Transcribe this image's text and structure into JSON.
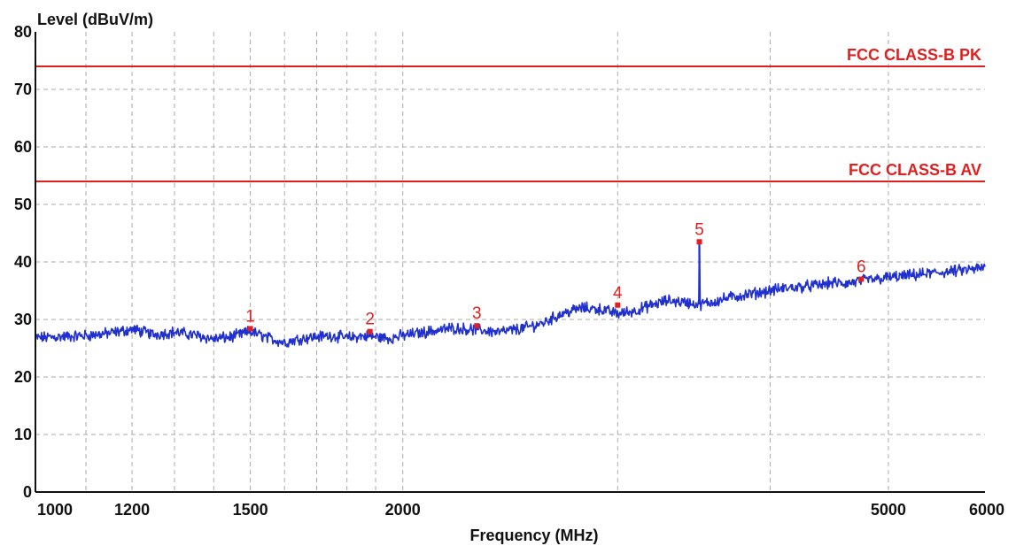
{
  "chart_data": {
    "type": "line",
    "title": "",
    "ylabel": "Level (dBuV/m)",
    "xlabel": "Frequency (MHz)",
    "x_scale": "log",
    "xlim": [
      1000,
      6000
    ],
    "ylim": [
      0,
      80
    ],
    "grid": true,
    "y_ticks": [
      "0",
      "10",
      "20",
      "30",
      "40",
      "50",
      "60",
      "70",
      "80"
    ],
    "x_ticks": [
      {
        "value": 1000,
        "label": "1000"
      },
      {
        "value": 1200,
        "label": "1200"
      },
      {
        "value": 1500,
        "label": "1500"
      },
      {
        "value": 2000,
        "label": "2000"
      },
      {
        "value": 5000,
        "label": "5000"
      },
      {
        "value": 6000,
        "label": "6000"
      }
    ],
    "x_minor_grid": [
      1100,
      1300,
      1400,
      1600,
      1700,
      1800,
      1900,
      3000,
      4000
    ],
    "limit_lines": [
      {
        "name": "FCC CLASS-B PK",
        "value": 74,
        "color": "#e02020"
      },
      {
        "name": "FCC CLASS-B AV",
        "value": 54,
        "color": "#e02020"
      }
    ],
    "series": [
      {
        "color": "#1f2fd0",
        "x": [
          1000,
          1050,
          1100,
          1150,
          1200,
          1250,
          1300,
          1350,
          1400,
          1450,
          1500,
          1550,
          1600,
          1650,
          1700,
          1750,
          1800,
          1850,
          1900,
          1950,
          2000,
          2100,
          2200,
          2300,
          2400,
          2500,
          2600,
          2700,
          2800,
          2900,
          3000,
          3100,
          3200,
          3300,
          3400,
          3500,
          3600,
          3700,
          3800,
          3900,
          4000,
          4100,
          4200,
          4300,
          4400,
          4500,
          4600,
          4700,
          4800,
          4900,
          5000,
          5200,
          5400,
          5600,
          5800,
          6000
        ],
        "y": [
          26.8,
          27.0,
          27.2,
          27.6,
          28.3,
          27.4,
          27.8,
          27.3,
          26.6,
          27.0,
          27.9,
          26.8,
          26.0,
          26.7,
          27.0,
          27.2,
          26.8,
          27.1,
          27.0,
          26.7,
          27.2,
          27.9,
          28.5,
          28.2,
          27.8,
          28.4,
          29.3,
          31.0,
          32.0,
          31.8,
          31.0,
          31.5,
          32.5,
          33.3,
          33.0,
          32.6,
          33.1,
          33.8,
          34.2,
          34.6,
          35.0,
          35.4,
          35.6,
          35.8,
          36.0,
          36.4,
          36.2,
          36.5,
          36.9,
          37.0,
          37.3,
          37.6,
          38.0,
          38.3,
          38.6,
          39.0
        ],
        "spike": {
          "x": 3500,
          "y": 43.5
        }
      }
    ],
    "markers": [
      {
        "label": "1",
        "x": 1500,
        "y": 28.4
      },
      {
        "label": "2",
        "x": 1880,
        "y": 27.9
      },
      {
        "label": "3",
        "x": 2300,
        "y": 28.9
      },
      {
        "label": "4",
        "x": 3000,
        "y": 32.5
      },
      {
        "label": "5",
        "x": 3500,
        "y": 43.5
      },
      {
        "label": "6",
        "x": 4750,
        "y": 37.0
      }
    ],
    "marker_color": "#e02020",
    "axis_color": "#111111",
    "grid_color": "#aaaaaa"
  }
}
